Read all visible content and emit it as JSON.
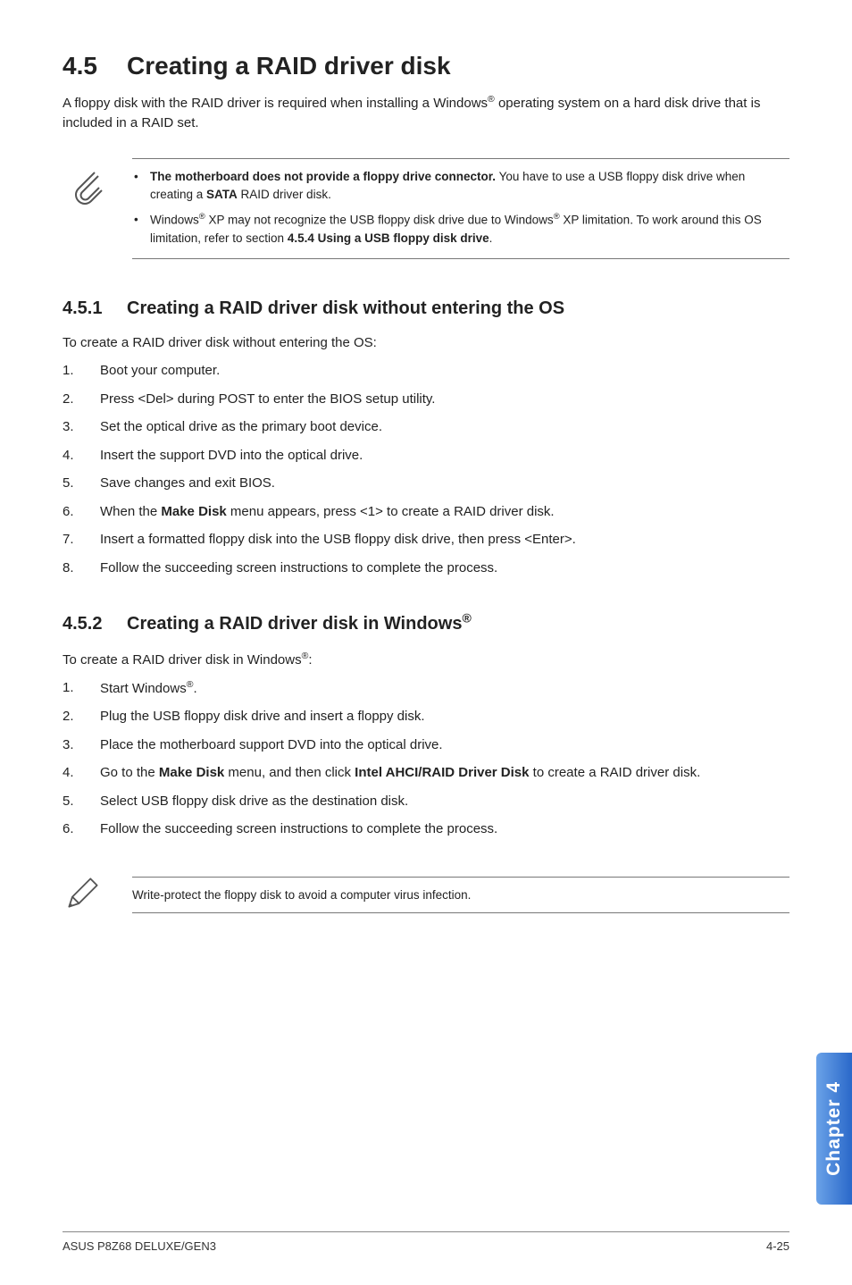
{
  "title_num": "4.5",
  "title_text": "Creating a RAID driver disk",
  "intro_html": "A floppy disk with the RAID driver is required when installing a Windows<sup>®</sup> operating system on a hard disk drive that is included in a RAID set.",
  "note1": {
    "items": [
      "<b>The motherboard does not provide a floppy drive connector.</b> You have to use a USB floppy disk drive when creating a <b>SATA</b> RAID driver disk.",
      "Windows<sup>®</sup> XP may not recognize the USB floppy disk drive due to Windows<sup>®</sup> XP limitation. To work around this OS limitation, refer to section <b>4.5.4 Using a USB floppy disk drive</b>."
    ]
  },
  "sub1": {
    "num": "4.5.1",
    "title": "Creating a RAID driver disk without entering the OS",
    "lead": "To create a RAID driver disk without entering the OS:",
    "steps": [
      "Boot your computer.",
      "Press <Del> during POST to enter the BIOS setup utility.",
      "Set the optical drive as the primary boot device.",
      "Insert the support DVD into the optical drive.",
      "Save changes and exit BIOS.",
      "When the <b>Make Disk</b> menu appears, press <1> to create a RAID driver disk.",
      "Insert a formatted floppy disk into the USB floppy disk drive, then press <Enter>.",
      "Follow the succeeding screen instructions to complete the process."
    ]
  },
  "sub2": {
    "num": "4.5.2",
    "title_html": "Creating a RAID driver disk in Windows<sup>®</sup>",
    "lead_html": "To create a RAID driver disk in Windows<sup>®</sup>:",
    "steps": [
      "Start Windows<sup>®</sup>.",
      "Plug the USB floppy disk drive and insert a floppy disk.",
      "Place the motherboard support DVD into the optical drive.",
      "Go to the <b>Make Disk</b> menu, and then click <b>Intel AHCI/RAID Driver Disk</b> to create a RAID driver disk.",
      "Select USB floppy disk drive as the destination disk.",
      "Follow the succeeding screen instructions to complete the process."
    ]
  },
  "note2": "Write-protect the floppy disk to avoid a computer virus infection.",
  "sidetab": "Chapter 4",
  "footer_left": "ASUS P8Z68 DELUXE/GEN3",
  "footer_right": "4-25"
}
